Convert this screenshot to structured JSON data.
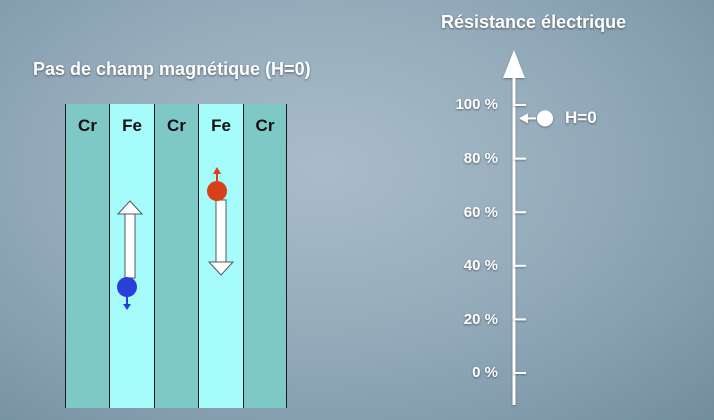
{
  "left_panel": {
    "title": "Pas de champ magnétique (H=0)",
    "layers": [
      {
        "label": "Cr",
        "material": "Cr"
      },
      {
        "label": "Fe",
        "material": "Fe",
        "spin": "down",
        "spin_color": "#2a3ed8"
      },
      {
        "label": "Cr",
        "material": "Cr"
      },
      {
        "label": "Fe",
        "material": "Fe",
        "spin": "up",
        "spin_color": "#d8401a"
      },
      {
        "label": "Cr",
        "material": "Cr"
      }
    ]
  },
  "resistance_axis": {
    "title": "Résistance électrique",
    "ticks": [
      "100 %",
      "80 %",
      "60 %",
      "40 %",
      "20 %",
      "0 %"
    ],
    "marker_label": "H=0",
    "marker_value_percent": 95
  },
  "colors": {
    "cr_layer": "#7ec8c6",
    "fe_layer": "#a6fbfb",
    "spin_down": "#2a3ed8",
    "spin_up": "#d8401a"
  }
}
